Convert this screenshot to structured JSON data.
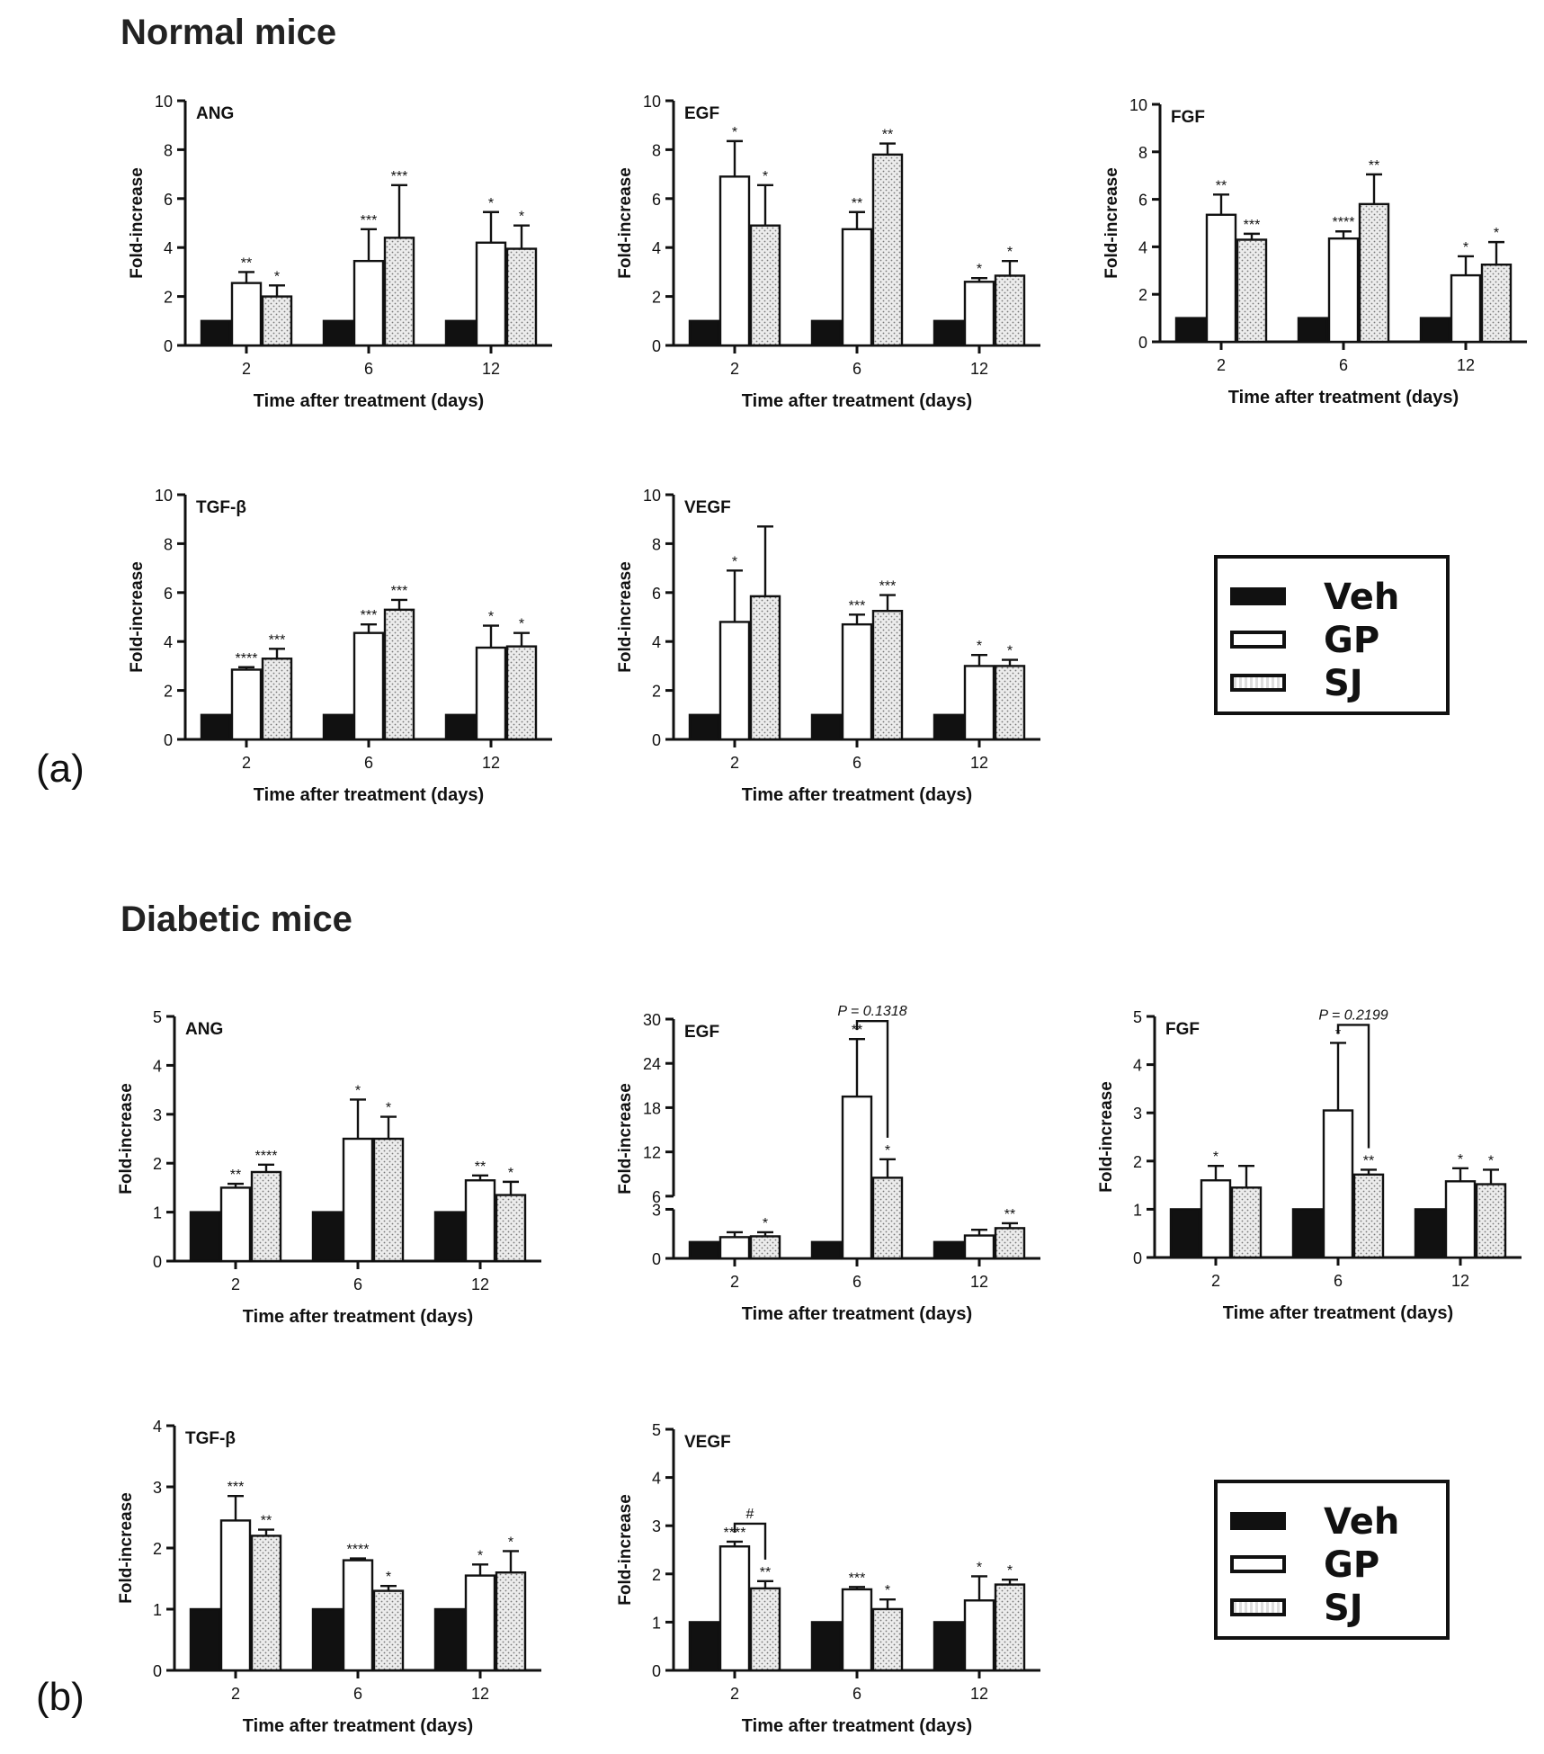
{
  "figure": {
    "section_titles": [
      "Normal mice",
      "Diabetic mice"
    ],
    "panel_labels": [
      "(a)",
      "(b)"
    ],
    "legend": [
      {
        "label": "Veh",
        "color": "#111111",
        "pattern": "solid"
      },
      {
        "label": "GP",
        "color": "#ffffff",
        "pattern": "open"
      },
      {
        "label": "SJ",
        "color": "#e6e6e6",
        "pattern": "dotted"
      }
    ],
    "colors": {
      "veh": "#111111",
      "gp": "#ffffff",
      "sj": "#e4e4e4",
      "axis": "#111111"
    }
  },
  "chart_data": [
    {
      "type": "bar",
      "group": "Normal mice",
      "title": "ANG",
      "xlabel": "Time after treatment (days)",
      "ylabel": "Fold-increase",
      "ylim": [
        0,
        10
      ],
      "yticks": [
        0,
        2,
        4,
        6,
        8,
        10
      ],
      "categories": [
        "2",
        "6",
        "12"
      ],
      "series": [
        {
          "name": "Veh",
          "values": [
            1,
            1,
            1
          ],
          "errors": [
            0,
            0,
            0
          ],
          "sig": [
            "",
            "",
            ""
          ]
        },
        {
          "name": "GP",
          "values": [
            2.55,
            3.45,
            4.2
          ],
          "errors": [
            0.45,
            1.3,
            1.25
          ],
          "sig": [
            "**",
            "***",
            "*"
          ]
        },
        {
          "name": "SJ",
          "values": [
            2.0,
            4.4,
            3.95
          ],
          "errors": [
            0.45,
            2.15,
            0.95
          ],
          "sig": [
            "*",
            "***",
            "*"
          ]
        }
      ]
    },
    {
      "type": "bar",
      "group": "Normal mice",
      "title": "EGF",
      "xlabel": "Time after treatment (days)",
      "ylabel": "Fold-increase",
      "ylim": [
        0,
        10
      ],
      "yticks": [
        0,
        2,
        4,
        6,
        8,
        10
      ],
      "categories": [
        "2",
        "6",
        "12"
      ],
      "series": [
        {
          "name": "Veh",
          "values": [
            1,
            1,
            1
          ],
          "errors": [
            0,
            0,
            0
          ],
          "sig": [
            "",
            "",
            ""
          ]
        },
        {
          "name": "GP",
          "values": [
            6.9,
            4.75,
            2.6
          ],
          "errors": [
            1.45,
            0.7,
            0.15
          ],
          "sig": [
            "*",
            "**",
            "*"
          ]
        },
        {
          "name": "SJ",
          "values": [
            4.9,
            7.8,
            2.85
          ],
          "errors": [
            1.65,
            0.45,
            0.6
          ],
          "sig": [
            "*",
            "**",
            "*"
          ]
        }
      ]
    },
    {
      "type": "bar",
      "group": "Normal mice",
      "title": "FGF",
      "xlabel": "Time after treatment (days)",
      "ylabel": "Fold-increase",
      "ylim": [
        0,
        10
      ],
      "yticks": [
        0,
        2,
        4,
        6,
        8,
        10
      ],
      "categories": [
        "2",
        "6",
        "12"
      ],
      "series": [
        {
          "name": "Veh",
          "values": [
            1,
            1,
            1
          ],
          "errors": [
            0,
            0,
            0
          ],
          "sig": [
            "",
            "",
            ""
          ]
        },
        {
          "name": "GP",
          "values": [
            5.35,
            4.35,
            2.8
          ],
          "errors": [
            0.85,
            0.3,
            0.8
          ],
          "sig": [
            "**",
            "****",
            "*"
          ]
        },
        {
          "name": "SJ",
          "values": [
            4.3,
            5.8,
            3.25
          ],
          "errors": [
            0.25,
            1.25,
            0.95
          ],
          "sig": [
            "***",
            "**",
            "*"
          ]
        }
      ]
    },
    {
      "type": "bar",
      "group": "Normal mice",
      "title": "TGF-β",
      "xlabel": "Time after treatment (days)",
      "ylabel": "Fold-increase",
      "ylim": [
        0,
        10
      ],
      "yticks": [
        0,
        2,
        4,
        6,
        8,
        10
      ],
      "categories": [
        "2",
        "6",
        "12"
      ],
      "series": [
        {
          "name": "Veh",
          "values": [
            1,
            1,
            1
          ],
          "errors": [
            0,
            0,
            0
          ],
          "sig": [
            "",
            "",
            ""
          ]
        },
        {
          "name": "GP",
          "values": [
            2.85,
            4.35,
            3.75
          ],
          "errors": [
            0.1,
            0.35,
            0.9
          ],
          "sig": [
            "****",
            "***",
            "*"
          ]
        },
        {
          "name": "SJ",
          "values": [
            3.3,
            5.3,
            3.8
          ],
          "errors": [
            0.4,
            0.4,
            0.55
          ],
          "sig": [
            "***",
            "***",
            "*"
          ]
        }
      ]
    },
    {
      "type": "bar",
      "group": "Normal mice",
      "title": "VEGF",
      "xlabel": "Time after treatment (days)",
      "ylabel": "Fold-increase",
      "ylim": [
        0,
        10
      ],
      "yticks": [
        0,
        2,
        4,
        6,
        8,
        10
      ],
      "categories": [
        "2",
        "6",
        "12"
      ],
      "series": [
        {
          "name": "Veh",
          "values": [
            1,
            1,
            1
          ],
          "errors": [
            0,
            0,
            0
          ],
          "sig": [
            "",
            "",
            ""
          ]
        },
        {
          "name": "GP",
          "values": [
            4.8,
            4.7,
            3.0
          ],
          "errors": [
            2.1,
            0.4,
            0.45
          ],
          "sig": [
            "*",
            "***",
            "*"
          ]
        },
        {
          "name": "SJ",
          "values": [
            5.85,
            5.25,
            3.0
          ],
          "errors": [
            2.85,
            0.65,
            0.25
          ],
          "sig": [
            "",
            "***",
            "*"
          ]
        }
      ]
    },
    {
      "type": "bar",
      "group": "Diabetic mice",
      "title": "ANG",
      "xlabel": "Time after treatment (days)",
      "ylabel": "Fold-increase",
      "ylim": [
        0,
        5
      ],
      "yticks": [
        0,
        1,
        2,
        3,
        4,
        5
      ],
      "categories": [
        "2",
        "6",
        "12"
      ],
      "series": [
        {
          "name": "Veh",
          "values": [
            1,
            1,
            1
          ],
          "errors": [
            0,
            0,
            0
          ],
          "sig": [
            "",
            "",
            ""
          ]
        },
        {
          "name": "GP",
          "values": [
            1.5,
            2.5,
            1.65
          ],
          "errors": [
            0.08,
            0.8,
            0.1
          ],
          "sig": [
            "**",
            "*",
            "**"
          ]
        },
        {
          "name": "SJ",
          "values": [
            1.82,
            2.5,
            1.35
          ],
          "errors": [
            0.15,
            0.45,
            0.27
          ],
          "sig": [
            "****",
            "*",
            "*"
          ]
        }
      ]
    },
    {
      "type": "bar",
      "group": "Diabetic mice",
      "title": "EGF",
      "xlabel": "Time after treatment (days)",
      "ylabel": "Fold-increase",
      "ylim": [
        0,
        30
      ],
      "yticks": [
        0,
        3,
        6,
        12,
        18,
        24,
        30
      ],
      "axis_break": [
        3,
        6
      ],
      "categories": [
        "2",
        "6",
        "12"
      ],
      "series": [
        {
          "name": "Veh",
          "values": [
            1,
            1,
            1
          ],
          "errors": [
            0,
            0,
            0
          ],
          "sig": [
            "",
            "",
            ""
          ]
        },
        {
          "name": "GP",
          "values": [
            1.3,
            19.5,
            1.4
          ],
          "errors": [
            0.3,
            7.8,
            0.35
          ],
          "sig": [
            "",
            "**",
            ""
          ]
        },
        {
          "name": "SJ",
          "values": [
            1.35,
            8.5,
            1.85
          ],
          "errors": [
            0.25,
            2.5,
            0.3
          ],
          "sig": [
            "*",
            "*",
            "**"
          ]
        }
      ],
      "comparison": {
        "category": "6",
        "series": [
          "GP",
          "SJ"
        ],
        "label": "P = 0.1318"
      }
    },
    {
      "type": "bar",
      "group": "Diabetic mice",
      "title": "FGF",
      "xlabel": "Time after treatment (days)",
      "ylabel": "Fold-increase",
      "ylim": [
        0,
        5
      ],
      "yticks": [
        0,
        1,
        2,
        3,
        4,
        5
      ],
      "categories": [
        "2",
        "6",
        "12"
      ],
      "series": [
        {
          "name": "Veh",
          "values": [
            1,
            1,
            1
          ],
          "errors": [
            0,
            0,
            0
          ],
          "sig": [
            "",
            "",
            ""
          ]
        },
        {
          "name": "GP",
          "values": [
            1.6,
            3.05,
            1.58
          ],
          "errors": [
            0.3,
            1.4,
            0.27
          ],
          "sig": [
            "*",
            "*",
            "*"
          ]
        },
        {
          "name": "SJ",
          "values": [
            1.45,
            1.72,
            1.52
          ],
          "errors": [
            0.45,
            0.1,
            0.3
          ],
          "sig": [
            "",
            "**",
            "*"
          ]
        }
      ],
      "comparison": {
        "category": "6",
        "series": [
          "GP",
          "SJ"
        ],
        "label": "P = 0.2199"
      }
    },
    {
      "type": "bar",
      "group": "Diabetic mice",
      "title": "TGF-β",
      "xlabel": "Time after treatment (days)",
      "ylabel": "Fold-increase",
      "ylim": [
        0,
        4
      ],
      "yticks": [
        0,
        1,
        2,
        3,
        4
      ],
      "categories": [
        "2",
        "6",
        "12"
      ],
      "series": [
        {
          "name": "Veh",
          "values": [
            1,
            1,
            1
          ],
          "errors": [
            0,
            0,
            0
          ],
          "sig": [
            "",
            "",
            ""
          ]
        },
        {
          "name": "GP",
          "values": [
            2.45,
            1.8,
            1.55
          ],
          "errors": [
            0.4,
            0.03,
            0.18
          ],
          "sig": [
            "***",
            "****",
            "*"
          ]
        },
        {
          "name": "SJ",
          "values": [
            2.2,
            1.3,
            1.6
          ],
          "errors": [
            0.1,
            0.08,
            0.35
          ],
          "sig": [
            "**",
            "*",
            "*"
          ]
        }
      ]
    },
    {
      "type": "bar",
      "group": "Diabetic mice",
      "title": "VEGF",
      "xlabel": "Time after treatment (days)",
      "ylabel": "Fold-increase",
      "ylim": [
        0,
        5
      ],
      "yticks": [
        0,
        1,
        2,
        3,
        4,
        5
      ],
      "categories": [
        "2",
        "6",
        "12"
      ],
      "series": [
        {
          "name": "Veh",
          "values": [
            1,
            1,
            1
          ],
          "errors": [
            0,
            0,
            0
          ],
          "sig": [
            "",
            "",
            ""
          ]
        },
        {
          "name": "GP",
          "values": [
            2.57,
            1.68,
            1.45
          ],
          "errors": [
            0.1,
            0.05,
            0.5
          ],
          "sig": [
            "****",
            "***",
            "*"
          ]
        },
        {
          "name": "SJ",
          "values": [
            1.7,
            1.27,
            1.78
          ],
          "errors": [
            0.15,
            0.2,
            0.1
          ],
          "sig": [
            "**",
            "*",
            "*"
          ]
        }
      ],
      "comparison": {
        "category": "2",
        "series": [
          "GP",
          "SJ"
        ],
        "label": "#"
      }
    }
  ]
}
